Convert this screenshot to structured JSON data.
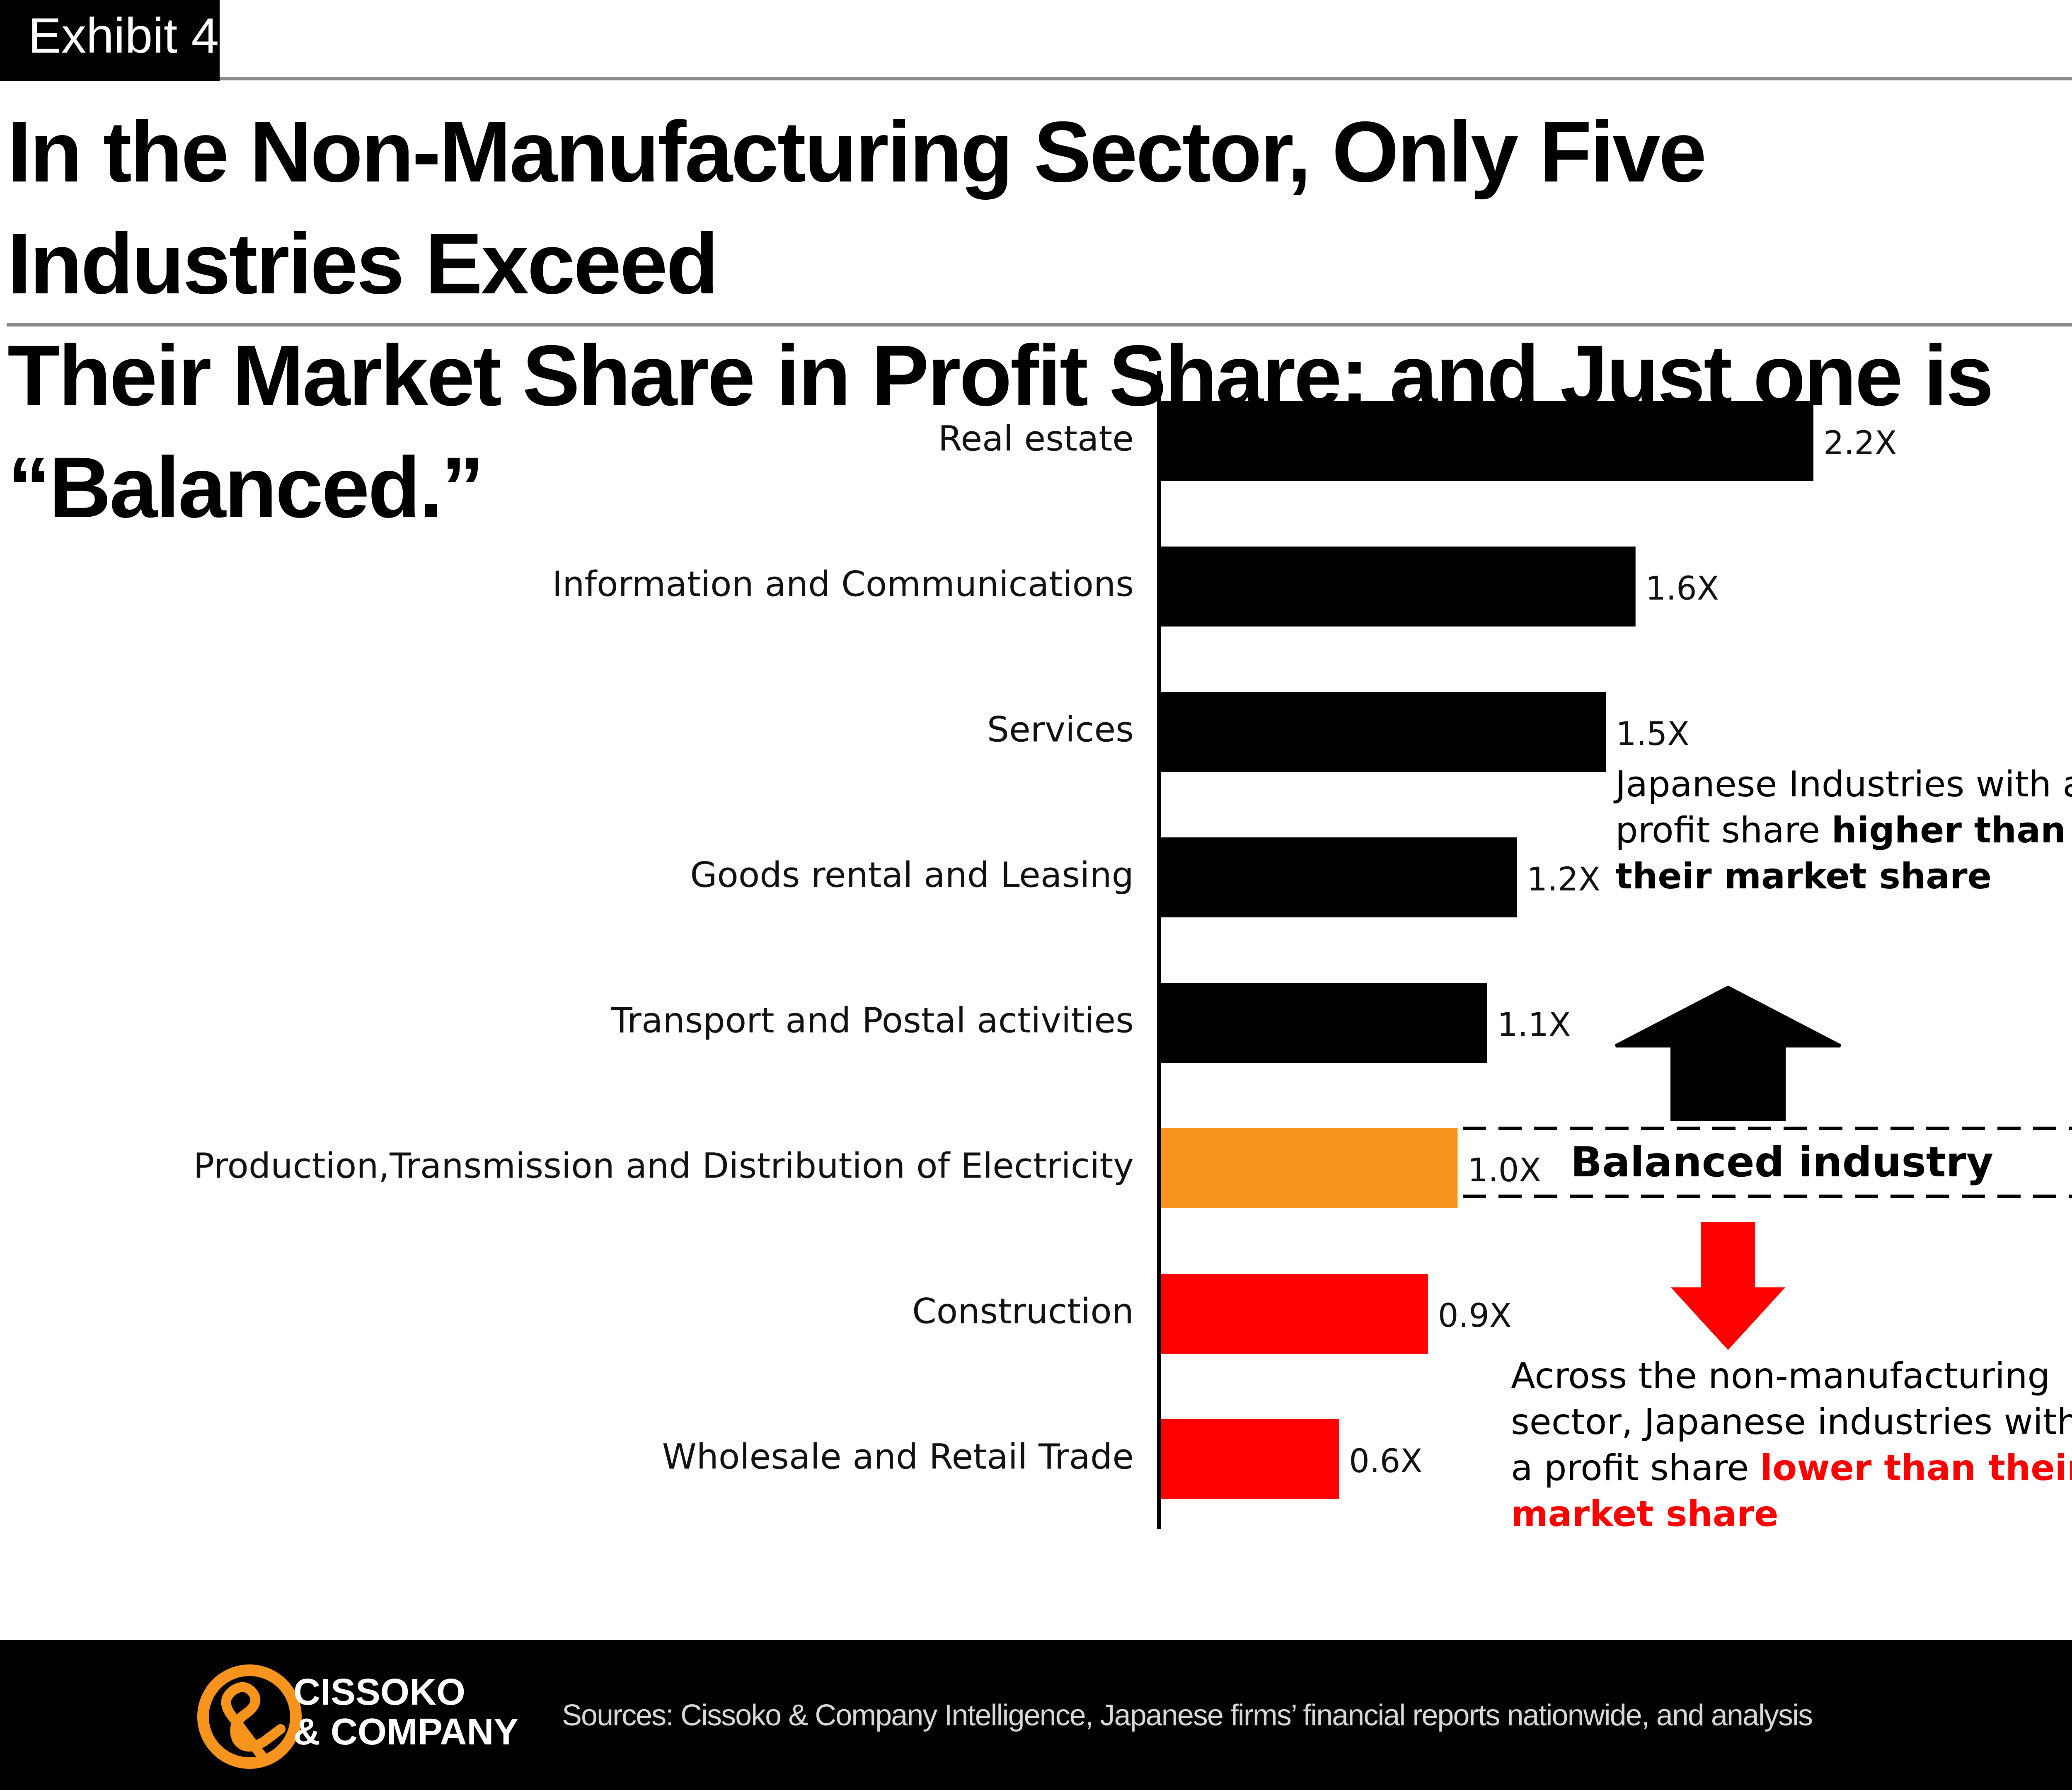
{
  "exhibit_label": "Exhibit 4",
  "title": {
    "line1": "In the Non-Manufacturing Sector, Only Five Industries Exceed",
    "line2": "Their Market Share in Profit Share; and Just one is “Balanced.”"
  },
  "chart_data": {
    "type": "bar",
    "orientation": "horizontal",
    "categories": [
      "Real estate",
      "Information and Communications",
      "Services",
      "Goods rental and Leasing",
      "Transport and Postal activities",
      "Production,Transmission and Distribution of Electricity",
      "Construction",
      "Wholesale and Retail Trade"
    ],
    "values": [
      2.2,
      1.6,
      1.5,
      1.2,
      1.1,
      1.0,
      0.9,
      0.6
    ],
    "data_labels": [
      "2.2X",
      "1.6X",
      "1.5X",
      "1.2X",
      "1.1X",
      "1.0X",
      "0.9X",
      "0.6X"
    ],
    "bar_colors": [
      "#000000",
      "#000000",
      "#000000",
      "#000000",
      "#000000",
      "#f7941d",
      "#ff0000",
      "#ff0000"
    ],
    "xlim": [
      0,
      2.2
    ],
    "grid": false,
    "legend": "none"
  },
  "annotations": {
    "higher_plain": "Japanese Industries with a profit share",
    "higher_bold": "higher than their market share",
    "balanced": "Balanced industry",
    "lower_plain": "Across the non-manufacturing sector, Japanese industries with a profit share",
    "lower_bold": "lower than their market share"
  },
  "colors": {
    "higher": "#000000",
    "balanced": "#f7941d",
    "lower": "#ff0000",
    "logo_orange": "#f7941d"
  },
  "footer": {
    "brand_line1": "CISSOKO",
    "brand_line2": "& COMPANY",
    "sources": "Sources: Cissoko & Company Intelligence, Japanese firms’ financial reports nationwide, and analysis"
  }
}
